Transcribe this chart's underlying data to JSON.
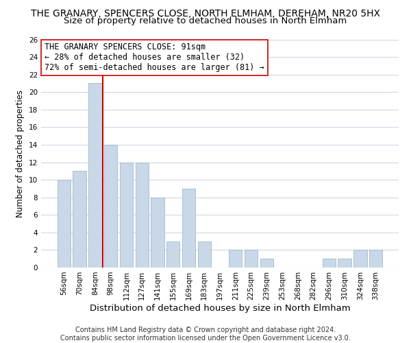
{
  "title": "THE GRANARY, SPENCERS CLOSE, NORTH ELMHAM, DEREHAM, NR20 5HX",
  "subtitle": "Size of property relative to detached houses in North Elmham",
  "xlabel": "Distribution of detached houses by size in North Elmham",
  "ylabel": "Number of detached properties",
  "bar_color": "#c8d8e8",
  "bar_edge_color": "#a0b8cc",
  "categories": [
    "56sqm",
    "70sqm",
    "84sqm",
    "98sqm",
    "112sqm",
    "127sqm",
    "141sqm",
    "155sqm",
    "169sqm",
    "183sqm",
    "197sqm",
    "211sqm",
    "225sqm",
    "239sqm",
    "253sqm",
    "268sqm",
    "282sqm",
    "296sqm",
    "310sqm",
    "324sqm",
    "338sqm"
  ],
  "values": [
    10,
    11,
    21,
    14,
    12,
    12,
    8,
    3,
    9,
    3,
    0,
    2,
    2,
    1,
    0,
    0,
    0,
    1,
    1,
    2,
    2
  ],
  "ylim": [
    0,
    26
  ],
  "yticks": [
    0,
    2,
    4,
    6,
    8,
    10,
    12,
    14,
    16,
    18,
    20,
    22,
    24,
    26
  ],
  "ref_line_index": 2,
  "reference_line_color": "#cc0000",
  "annotation_line1": "THE GRANARY SPENCERS CLOSE: 91sqm",
  "annotation_line2": "← 28% of detached houses are smaller (32)",
  "annotation_line3": "72% of semi-detached houses are larger (81) →",
  "annotation_box_color": "#ffffff",
  "annotation_box_edge": "#cc0000",
  "footer_line1": "Contains HM Land Registry data © Crown copyright and database right 2024.",
  "footer_line2": "Contains public sector information licensed under the Open Government Licence v3.0.",
  "background_color": "#ffffff",
  "grid_color": "#cdd8e3",
  "title_fontsize": 10,
  "subtitle_fontsize": 9.5,
  "xlabel_fontsize": 9.5,
  "ylabel_fontsize": 8.5,
  "tick_fontsize": 7.5,
  "annotation_fontsize": 8.5,
  "footer_fontsize": 7
}
